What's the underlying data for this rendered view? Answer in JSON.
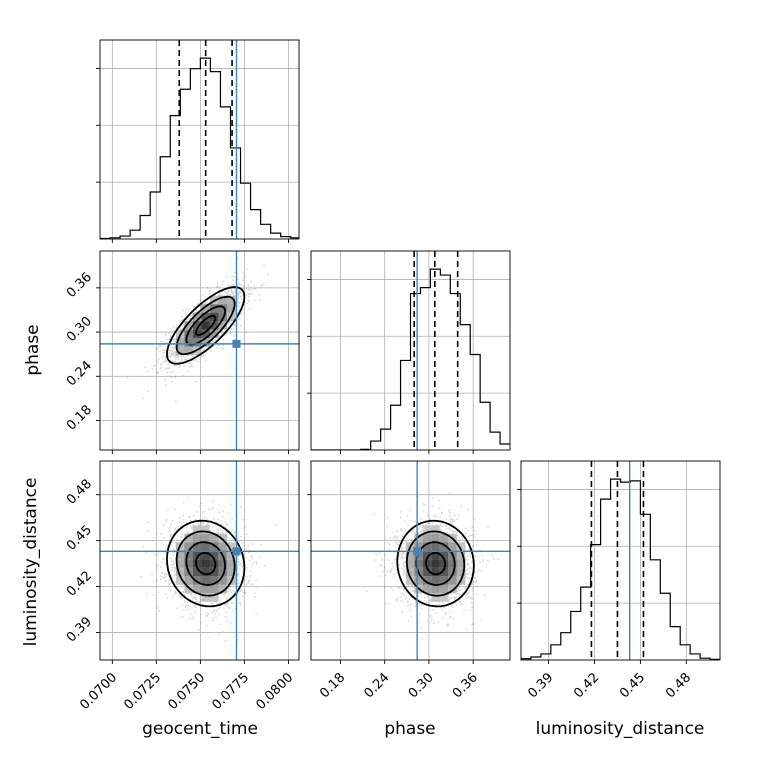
{
  "chart_data": {
    "type": "corner",
    "parameters": [
      "geocent_time",
      "phase",
      "luminosity_distance"
    ],
    "axis_labels": {
      "x": [
        "geocent_time",
        "phase",
        "luminosity_distance"
      ],
      "y_left": [
        "phase",
        "luminosity_distance"
      ]
    },
    "ticks": {
      "geocent_time": [
        "0.0700",
        "0.0725",
        "0.0750",
        "0.0775",
        "0.0800"
      ],
      "phase": [
        "0.18",
        "0.24",
        "0.30",
        "0.36"
      ],
      "luminosity_distance": [
        "0.39",
        "0.42",
        "0.45",
        "0.48"
      ]
    },
    "ranges": {
      "geocent_time": [
        0.0693,
        0.0806
      ],
      "phase": [
        0.14,
        0.41
      ],
      "luminosity_distance": [
        0.372,
        0.502
      ]
    },
    "truths": {
      "geocent_time": 0.07705,
      "phase": 0.284,
      "luminosity_distance": 0.443,
      "color": "#4682b4"
    },
    "quantiles": {
      "geocent_time": [
        0.0738,
        0.0753,
        0.0768
      ],
      "phase": [
        0.28,
        0.308,
        0.339
      ],
      "luminosity_distance": [
        0.418,
        0.435,
        0.452
      ]
    },
    "histograms": {
      "geocent_time": {
        "edges": [
          0.0693,
          0.06987,
          0.07044,
          0.07101,
          0.07158,
          0.07215,
          0.07272,
          0.07329,
          0.07386,
          0.07443,
          0.075,
          0.07557,
          0.07614,
          0.07671,
          0.07728,
          0.07785,
          0.07842,
          0.07899,
          0.07956,
          0.08013,
          0.0806
        ],
        "counts": [
          1,
          2,
          5,
          15,
          40,
          80,
          140,
          210,
          255,
          290,
          308,
          285,
          225,
          155,
          95,
          50,
          25,
          10,
          4,
          2
        ]
      },
      "phase": {
        "edges": [
          0.14,
          0.1535,
          0.167,
          0.1805,
          0.194,
          0.2075,
          0.221,
          0.2345,
          0.248,
          0.2615,
          0.275,
          0.2885,
          0.302,
          0.3155,
          0.329,
          0.3425,
          0.356,
          0.3695,
          0.383,
          0.3965,
          0.41
        ],
        "counts": [
          0,
          0,
          0,
          0,
          0,
          1,
          15,
          35,
          75,
          150,
          262,
          272,
          303,
          293,
          262,
          210,
          160,
          80,
          30,
          10
        ]
      },
      "luminosity_distance": {
        "edges": [
          0.372,
          0.3785,
          0.385,
          0.3915,
          0.398,
          0.4045,
          0.411,
          0.4175,
          0.424,
          0.4305,
          0.437,
          0.4435,
          0.45,
          0.4565,
          0.463,
          0.4695,
          0.476,
          0.4825,
          0.489,
          0.4955,
          0.502
        ],
        "counts": [
          2,
          5,
          10,
          25,
          45,
          80,
          120,
          190,
          265,
          298,
          293,
          295,
          240,
          165,
          110,
          55,
          25,
          10,
          3,
          1
        ]
      }
    },
    "contour_levels": [
      "0.5",
      "1.0",
      "1.5",
      "2.0"
    ],
    "grid": true,
    "colors": {
      "line": "#000000",
      "truth": "#4682b4",
      "points": "#808080"
    }
  }
}
